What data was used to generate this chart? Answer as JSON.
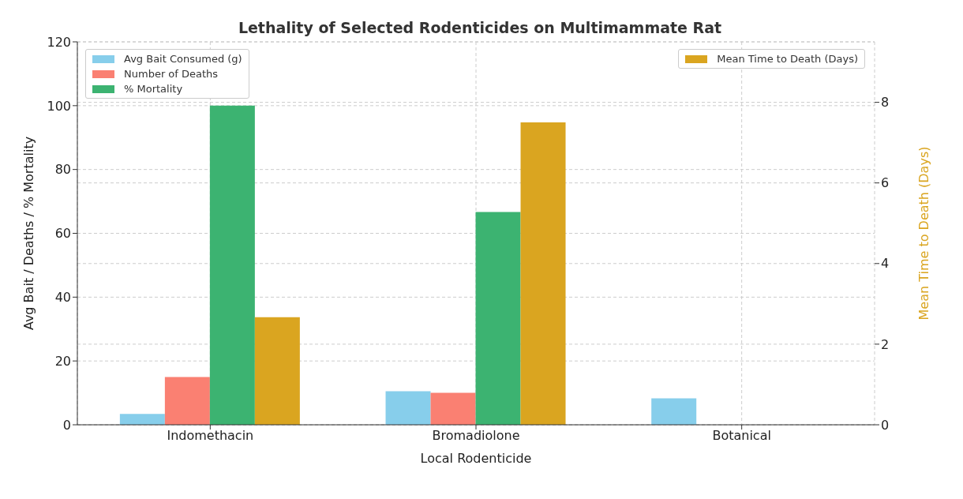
{
  "chart_data": {
    "type": "bar",
    "title": "Lethality of Selected Rodenticides on Multimammate Rat",
    "xlabel": "Local Rodenticide",
    "ylabel": "Avg Bait / Deaths / % Mortality",
    "y2label": "Mean Time to Death (Days)",
    "categories": [
      "Indomethacin",
      "Bromadiolone",
      "Botanical"
    ],
    "series": [
      {
        "name": "Avg Bait Consumed (g)",
        "color": "#87ceeb",
        "values": [
          3.4,
          10.5,
          8.3
        ]
      },
      {
        "name": "Number of Deaths",
        "color": "#fa8072",
        "values": [
          15,
          10,
          0
        ]
      },
      {
        "name": "% Mortality",
        "color": "#3cb371",
        "values": [
          100,
          66.7,
          0
        ]
      },
      {
        "name": "Mean Time to Death (Days)",
        "color": "#daa520",
        "values": [
          2.67,
          7.5,
          0
        ],
        "axis": "y2"
      }
    ],
    "ylim": [
      0,
      120
    ],
    "yticks": [
      0,
      20,
      40,
      60,
      80,
      100,
      120
    ],
    "y2lim": [
      0,
      9.5
    ],
    "y2ticks": [
      0,
      2,
      4,
      6,
      8
    ],
    "grid": true,
    "legend": "top"
  }
}
